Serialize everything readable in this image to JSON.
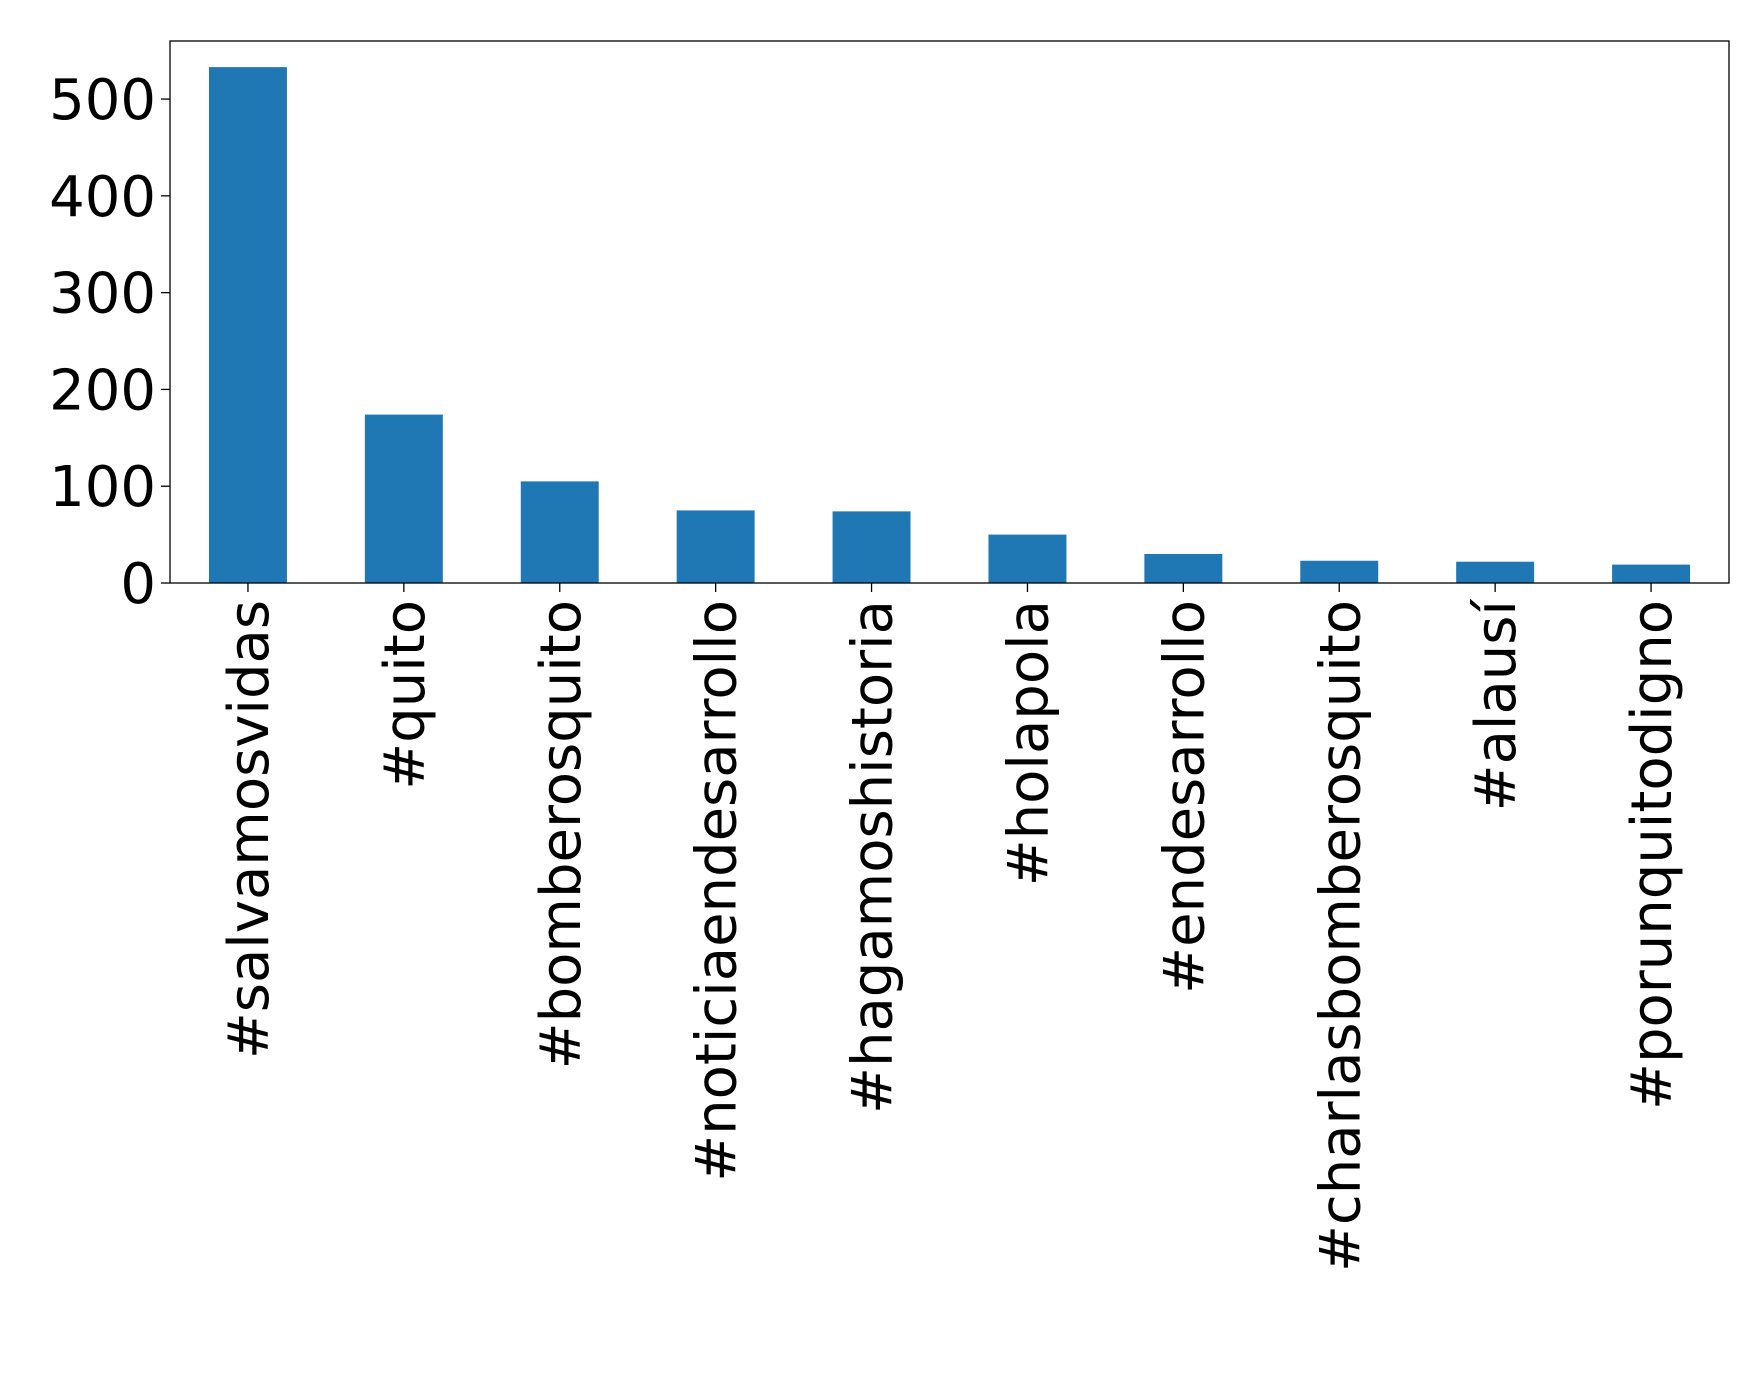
{
  "chart_data": {
    "type": "bar",
    "title": "",
    "xlabel": "",
    "ylabel": "",
    "categories": [
      "#salvamosvidas",
      "#quito",
      "#bomberosquito",
      "#noticiaendesarrollo",
      "#hagamoshistoria",
      "#holapola",
      "#endesarrollo",
      "#charlasbomberosquito",
      "#alausí",
      "#porunquitodigno"
    ],
    "values": [
      533,
      174,
      105,
      75,
      74,
      50,
      30,
      23,
      22,
      19
    ],
    "ylim": [
      0,
      560
    ],
    "yticks": [
      0,
      100,
      200,
      300,
      400,
      500
    ],
    "ytick_labels": [
      "0",
      "100",
      "200",
      "300",
      "400",
      "500"
    ],
    "grid": false,
    "legend": "none",
    "bar_color": "#1f77b4"
  }
}
